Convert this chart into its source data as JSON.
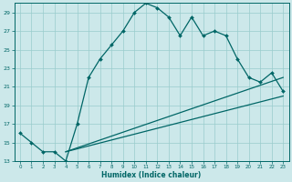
{
  "xlabel": "Humidex (Indice chaleur)",
  "bg_color": "#cce8ea",
  "grid_color": "#99cccc",
  "line_color": "#006666",
  "xlim": [
    -0.5,
    23.5
  ],
  "ylim": [
    13,
    30
  ],
  "yticks": [
    13,
    15,
    17,
    19,
    21,
    23,
    25,
    27,
    29
  ],
  "xticks": [
    0,
    1,
    2,
    3,
    4,
    5,
    6,
    7,
    8,
    9,
    10,
    11,
    12,
    13,
    14,
    15,
    16,
    17,
    18,
    19,
    20,
    21,
    22,
    23
  ],
  "line1_x": [
    0,
    1,
    2,
    3,
    4,
    5,
    6,
    7,
    8,
    9,
    10,
    11,
    12,
    13,
    14,
    15,
    16,
    17,
    18,
    19,
    20,
    21,
    22,
    23
  ],
  "line1_y": [
    16,
    15,
    14,
    14,
    13,
    17,
    22,
    24,
    25.5,
    27,
    29,
    30,
    29.5,
    28.5,
    26.5,
    28.5,
    26.5,
    27,
    26.5,
    24,
    22,
    21.5,
    22.5,
    20.5
  ],
  "line2_x": [
    4,
    23
  ],
  "line2_y": [
    14,
    22
  ],
  "line3_x": [
    4,
    23
  ],
  "line3_y": [
    14,
    20
  ]
}
